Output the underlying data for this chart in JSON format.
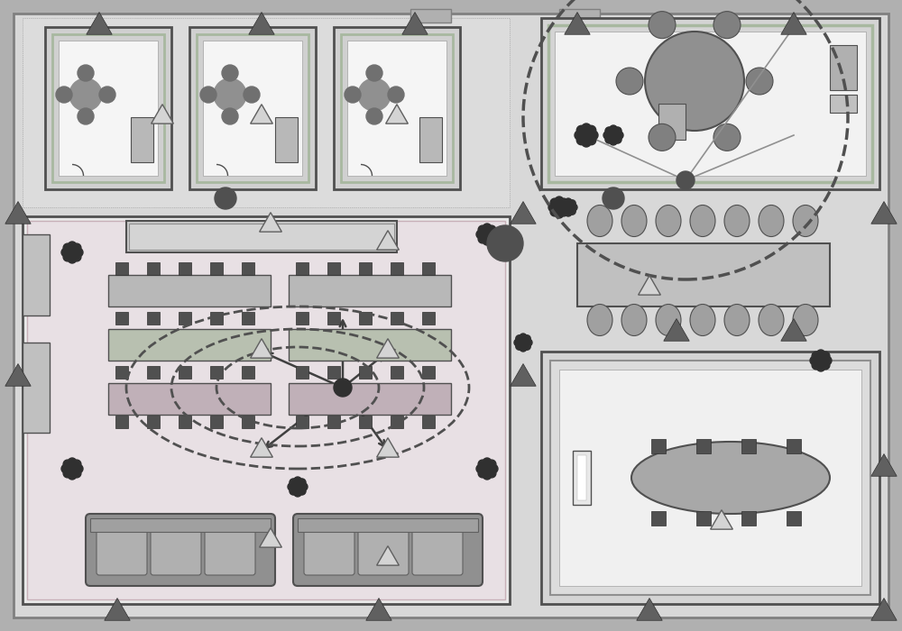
{
  "bg_outer": "#b0b0b0",
  "bg_inner": "#d8d8d8",
  "wall_color": "#808080",
  "wall_thick": "#505050",
  "room_white": "#f0f0f0",
  "room_gray": "#e0e0e0",
  "room_light": "#e8e8e8",
  "green_accent": "#a8b8a0",
  "pink_accent": "#c8b0b8",
  "desk_gray": "#b0b0b0",
  "desk_pink": "#c0a8b0",
  "desk_green": "#a8b8a0",
  "chair_dark": "#707070",
  "chair_med": "#909090",
  "table_gray": "#a0a0a0",
  "sofa_gray": "#909090",
  "sofa_light": "#b0b0b0",
  "dashed_color": "#505050",
  "arrow_color": "#404040",
  "tri_dark": "#606060",
  "tri_light": "#c8c8c8",
  "circle_dark": "#505050",
  "square_dark": "#505050",
  "plant_color": "#303030",
  "line_color": "#909090",
  "figsize": [
    10,
    7
  ]
}
